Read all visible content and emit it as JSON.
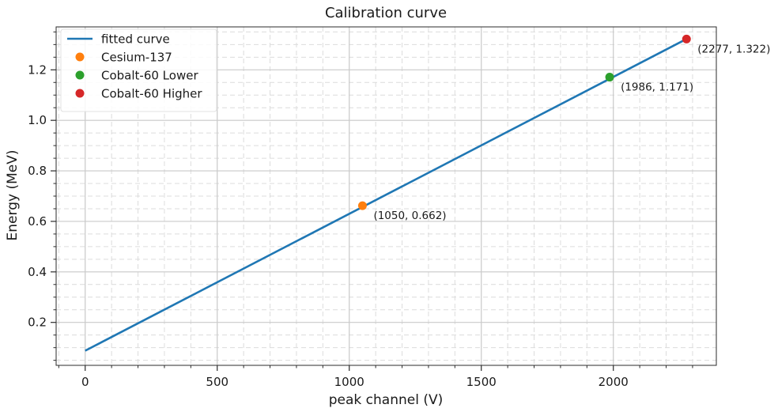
{
  "chart_data": {
    "type": "line",
    "title": "Calibration curve",
    "xlabel": "peak channel (V)",
    "ylabel": "Energy (MeV)",
    "xlim": [
      -110,
      2390
    ],
    "ylim": [
      0.03,
      1.37
    ],
    "x_ticks": [
      0,
      500,
      1000,
      1500,
      2000
    ],
    "y_ticks": [
      0.2,
      0.4,
      0.6,
      0.8,
      1.0,
      1.2
    ],
    "x_tick_labels": [
      "0",
      "500",
      "1000",
      "1500",
      "2000"
    ],
    "y_tick_labels": [
      "0.2",
      "0.4",
      "0.6",
      "0.8",
      "1.0",
      "1.2"
    ],
    "grid": true,
    "legend_position": "top-left",
    "series": [
      {
        "name": "fitted curve",
        "kind": "line",
        "color": "#1f77b4",
        "x": [
          0,
          2277
        ],
        "y": [
          0.088,
          1.322
        ]
      },
      {
        "name": "Cesium-137",
        "kind": "point",
        "color": "#ff7f0e",
        "x": [
          1050
        ],
        "y": [
          0.662
        ],
        "annotation": "(1050, 0.662)"
      },
      {
        "name": "Cobalt-60 Lower",
        "kind": "point",
        "color": "#2ca02c",
        "x": [
          1986
        ],
        "y": [
          1.171
        ],
        "annotation": "(1986, 1.171)"
      },
      {
        "name": "Cobalt-60 Higher",
        "kind": "point",
        "color": "#d62728",
        "x": [
          2277
        ],
        "y": [
          1.322
        ],
        "annotation": "(2277, 1.322)"
      }
    ]
  }
}
